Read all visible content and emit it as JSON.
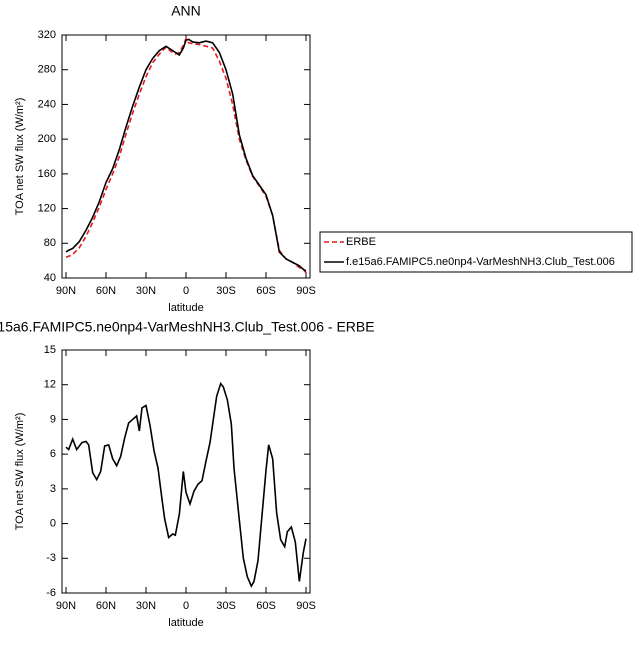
{
  "chart_data": [
    {
      "type": "line",
      "title": "ANN",
      "xlabel": "latitude",
      "ylabel": "TOA net SW flux (W/m²)",
      "x": [
        90,
        88,
        85,
        80,
        75,
        70,
        65,
        60,
        55,
        50,
        45,
        40,
        35,
        30,
        25,
        20,
        15,
        12,
        8,
        5,
        2,
        0,
        -2,
        -5,
        -10,
        -15,
        -20,
        -25,
        -30,
        -35,
        -40,
        -45,
        -50,
        -55,
        -60,
        -65,
        -70,
        -75,
        -80,
        -85,
        -88,
        -90
      ],
      "series": [
        {
          "name": "ERBE",
          "color": "#e41a1c",
          "dash": true,
          "values": [
            64,
            65,
            67,
            75,
            88,
            104,
            122,
            142,
            160,
            180,
            206,
            230,
            252,
            272,
            288,
            298,
            306,
            302,
            298,
            300,
            308,
            316,
            311,
            310,
            309,
            307,
            305,
            290,
            270,
            240,
            200,
            176,
            157,
            146,
            134,
            112,
            72,
            62,
            58,
            52,
            50,
            46
          ]
        },
        {
          "name": "f.e15a6.FAMIPC5.ne0np4-VarMeshNH3.Club_Test.006",
          "color": "#000000",
          "dash": false,
          "values": [
            70,
            72,
            74,
            82,
            95,
            110,
            128,
            150,
            166,
            188,
            214,
            238,
            260,
            280,
            293,
            302,
            307,
            304,
            300,
            297,
            305,
            314,
            315,
            312,
            311,
            313,
            311,
            300,
            280,
            252,
            205,
            178,
            158,
            147,
            136,
            112,
            70,
            62,
            58,
            54,
            50,
            48
          ]
        }
      ],
      "xlim": [
        93,
        -93
      ],
      "xticks": [
        {
          "value": 90,
          "label": "90N"
        },
        {
          "value": 60,
          "label": "60N"
        },
        {
          "value": 30,
          "label": "30N"
        },
        0,
        {
          "value": -30,
          "label": "30S"
        },
        {
          "value": -60,
          "label": "60S"
        },
        {
          "value": -90,
          "label": "90S"
        }
      ],
      "ylim": [
        40,
        320
      ],
      "yticks": [
        40,
        80,
        120,
        160,
        200,
        240,
        280,
        320
      ],
      "legend": "right"
    },
    {
      "type": "line",
      "title": "15a6.FAMIPC5.ne0np4-VarMeshNH3.Club_Test.006 - ERBE",
      "xlabel": "latitude",
      "ylabel": "TOA net SW flux (W/m²)",
      "x": [
        90,
        88,
        85,
        82,
        78,
        75,
        73,
        70,
        67,
        64,
        61,
        58,
        55,
        52,
        49,
        46,
        43,
        40,
        37,
        35,
        33,
        30,
        27,
        24,
        21,
        18,
        16,
        13,
        10,
        8,
        5,
        2,
        0,
        -3,
        -6,
        -9,
        -12,
        -15,
        -18,
        -21,
        -23,
        -26,
        -28,
        -31,
        -34,
        -36,
        -40,
        -43,
        -46,
        -49,
        -51,
        -54,
        -57,
        -60,
        -62,
        -65,
        -68,
        -71,
        -74,
        -76,
        -79,
        -82,
        -85,
        -88,
        -90
      ],
      "series": [
        {
          "color": "#000000",
          "dash": false,
          "values": [
            6.6,
            6.4,
            7.3,
            6.4,
            7.0,
            7.1,
            6.8,
            4.4,
            3.8,
            4.5,
            6.7,
            6.8,
            5.6,
            5.0,
            5.8,
            7.4,
            8.7,
            9.0,
            9.3,
            8.0,
            10.0,
            10.2,
            8.5,
            6.3,
            4.8,
            2.1,
            0.4,
            -1.2,
            -0.9,
            -1.0,
            0.8,
            4.5,
            2.7,
            1.7,
            2.8,
            3.4,
            3.7,
            5.4,
            7.0,
            9.4,
            11.0,
            12.1,
            11.8,
            10.7,
            8.6,
            4.8,
            0.3,
            -3.0,
            -4.6,
            -5.4,
            -5.0,
            -3.2,
            0.7,
            4.6,
            6.8,
            5.6,
            0.9,
            -1.4,
            -2.0,
            -0.7,
            -0.3,
            -1.6,
            -5.0,
            -2.5,
            -1.3
          ]
        }
      ],
      "xlim": [
        93,
        -93
      ],
      "xticks": [
        {
          "value": 90,
          "label": "90N"
        },
        {
          "value": 60,
          "label": "60N"
        },
        {
          "value": 30,
          "label": "30N"
        },
        0,
        {
          "value": -30,
          "label": "30S"
        },
        {
          "value": -60,
          "label": "60S"
        },
        {
          "value": -90,
          "label": "90S"
        }
      ],
      "ylim": [
        -6,
        15
      ],
      "yticks": [
        -6,
        -3,
        0,
        3,
        6,
        9,
        12,
        15
      ]
    }
  ]
}
